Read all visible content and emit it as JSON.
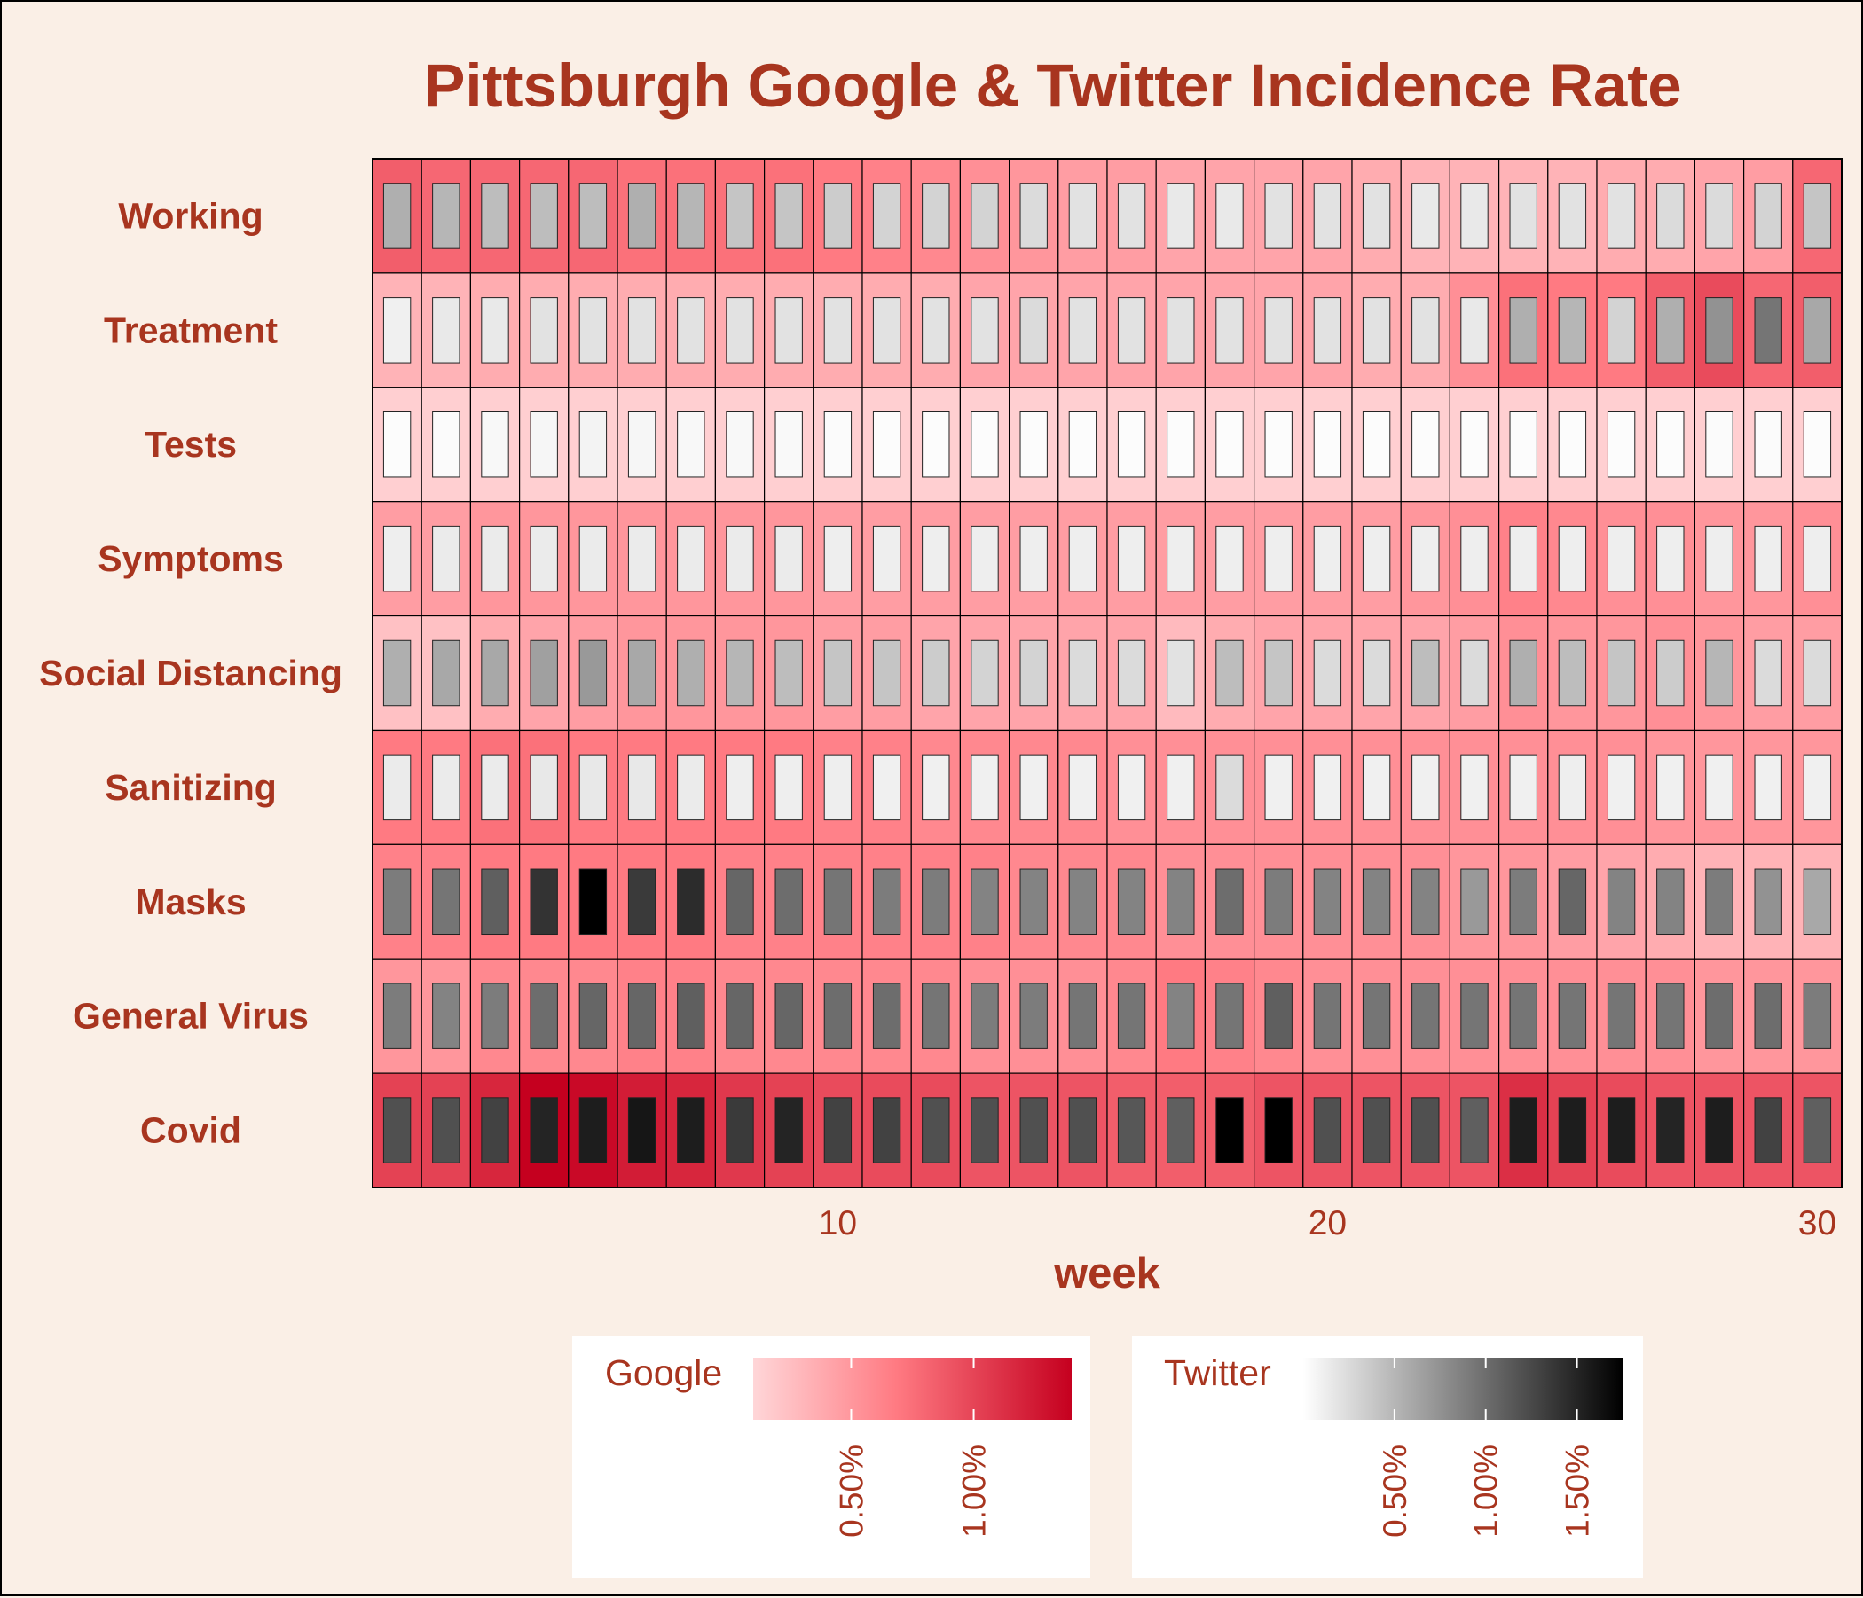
{
  "chart_data": {
    "type": "heatmap",
    "title": "Pittsburgh Google & Twitter Incidence Rate",
    "xlabel": "week",
    "ylabel": "",
    "x_ticks": [
      10,
      20,
      30
    ],
    "xlim": [
      0.5,
      30.5
    ],
    "weeks": [
      1,
      2,
      3,
      4,
      5,
      6,
      7,
      8,
      9,
      10,
      11,
      12,
      13,
      14,
      15,
      16,
      17,
      18,
      19,
      20,
      21,
      22,
      23,
      24,
      25,
      26,
      27,
      28,
      29,
      30
    ],
    "categories": [
      "Working",
      "Treatment",
      "Tests",
      "Symptoms",
      "Social Distancing",
      "Sanitizing",
      "Masks",
      "General Virus",
      "Covid"
    ],
    "google_series": [
      {
        "name": "Working",
        "values": [
          0.9,
          0.85,
          0.85,
          0.85,
          0.85,
          0.8,
          0.8,
          0.8,
          0.8,
          0.75,
          0.7,
          0.65,
          0.6,
          0.55,
          0.5,
          0.5,
          0.45,
          0.45,
          0.45,
          0.45,
          0.4,
          0.35,
          0.35,
          0.35,
          0.35,
          0.4,
          0.4,
          0.45,
          0.5,
          0.85
        ]
      },
      {
        "name": "Treatment",
        "values": [
          0.35,
          0.35,
          0.4,
          0.4,
          0.4,
          0.4,
          0.4,
          0.4,
          0.4,
          0.4,
          0.4,
          0.4,
          0.45,
          0.45,
          0.45,
          0.45,
          0.45,
          0.45,
          0.45,
          0.45,
          0.4,
          0.4,
          0.6,
          0.8,
          0.75,
          0.75,
          0.9,
          1.0,
          0.85,
          0.9
        ]
      },
      {
        "name": "Tests",
        "values": [
          0.15,
          0.15,
          0.15,
          0.15,
          0.15,
          0.15,
          0.15,
          0.15,
          0.15,
          0.15,
          0.15,
          0.15,
          0.15,
          0.15,
          0.15,
          0.15,
          0.15,
          0.15,
          0.15,
          0.15,
          0.15,
          0.15,
          0.15,
          0.15,
          0.15,
          0.15,
          0.15,
          0.15,
          0.15,
          0.15
        ]
      },
      {
        "name": "Symptoms",
        "values": [
          0.5,
          0.5,
          0.55,
          0.55,
          0.55,
          0.55,
          0.55,
          0.55,
          0.55,
          0.5,
          0.5,
          0.5,
          0.5,
          0.5,
          0.5,
          0.5,
          0.5,
          0.5,
          0.5,
          0.5,
          0.5,
          0.55,
          0.6,
          0.7,
          0.65,
          0.6,
          0.6,
          0.55,
          0.55,
          0.6
        ]
      },
      {
        "name": "Social Distancing",
        "values": [
          0.25,
          0.25,
          0.4,
          0.45,
          0.5,
          0.55,
          0.55,
          0.55,
          0.55,
          0.5,
          0.5,
          0.45,
          0.45,
          0.45,
          0.45,
          0.45,
          0.3,
          0.4,
          0.45,
          0.45,
          0.45,
          0.45,
          0.5,
          0.6,
          0.55,
          0.55,
          0.6,
          0.55,
          0.5,
          0.5
        ]
      },
      {
        "name": "Sanitizing",
        "values": [
          0.75,
          0.75,
          0.8,
          0.8,
          0.75,
          0.75,
          0.75,
          0.75,
          0.75,
          0.7,
          0.7,
          0.65,
          0.65,
          0.65,
          0.65,
          0.6,
          0.6,
          0.6,
          0.6,
          0.6,
          0.6,
          0.6,
          0.6,
          0.6,
          0.6,
          0.6,
          0.55,
          0.55,
          0.55,
          0.55
        ]
      },
      {
        "name": "Masks",
        "values": [
          0.7,
          0.7,
          0.75,
          0.75,
          0.75,
          0.75,
          0.75,
          0.7,
          0.7,
          0.7,
          0.7,
          0.7,
          0.7,
          0.65,
          0.65,
          0.65,
          0.6,
          0.6,
          0.6,
          0.6,
          0.6,
          0.6,
          0.55,
          0.55,
          0.5,
          0.45,
          0.4,
          0.35,
          0.35,
          0.35
        ]
      },
      {
        "name": "General Virus",
        "values": [
          0.55,
          0.55,
          0.65,
          0.65,
          0.65,
          0.7,
          0.7,
          0.65,
          0.65,
          0.65,
          0.65,
          0.65,
          0.6,
          0.6,
          0.6,
          0.65,
          0.75,
          0.7,
          0.65,
          0.6,
          0.6,
          0.6,
          0.6,
          0.6,
          0.6,
          0.6,
          0.6,
          0.55,
          0.55,
          0.55
        ]
      },
      {
        "name": "Covid",
        "values": [
          1.05,
          1.05,
          1.2,
          1.4,
          1.35,
          1.25,
          1.2,
          1.1,
          1.05,
          1.0,
          1.0,
          1.0,
          0.95,
          0.95,
          0.95,
          0.9,
          0.9,
          0.9,
          0.95,
          0.95,
          0.95,
          0.95,
          0.95,
          1.15,
          1.05,
          1.0,
          0.95,
          0.95,
          0.95,
          0.95
        ]
      }
    ],
    "twitter_series": [
      {
        "name": "Working",
        "values": [
          0.55,
          0.5,
          0.45,
          0.45,
          0.45,
          0.55,
          0.5,
          0.4,
          0.4,
          0.35,
          0.3,
          0.3,
          0.3,
          0.25,
          0.2,
          0.2,
          0.15,
          0.15,
          0.2,
          0.2,
          0.2,
          0.15,
          0.15,
          0.2,
          0.2,
          0.2,
          0.25,
          0.25,
          0.3,
          0.4
        ]
      },
      {
        "name": "Treatment",
        "values": [
          0.1,
          0.15,
          0.15,
          0.2,
          0.2,
          0.2,
          0.2,
          0.2,
          0.2,
          0.2,
          0.2,
          0.2,
          0.2,
          0.25,
          0.2,
          0.2,
          0.2,
          0.2,
          0.2,
          0.2,
          0.2,
          0.2,
          0.15,
          0.55,
          0.5,
          0.3,
          0.55,
          0.75,
          0.95,
          0.6
        ]
      },
      {
        "name": "Tests",
        "values": [
          0.02,
          0.03,
          0.05,
          0.06,
          0.08,
          0.06,
          0.05,
          0.05,
          0.04,
          0.03,
          0.02,
          0.02,
          0.02,
          0.02,
          0.02,
          0.02,
          0.02,
          0.02,
          0.02,
          0.02,
          0.02,
          0.02,
          0.02,
          0.02,
          0.02,
          0.02,
          0.02,
          0.03,
          0.03,
          0.02
        ]
      },
      {
        "name": "Symptoms",
        "values": [
          0.12,
          0.14,
          0.14,
          0.14,
          0.14,
          0.14,
          0.14,
          0.14,
          0.14,
          0.12,
          0.12,
          0.12,
          0.12,
          0.12,
          0.12,
          0.12,
          0.12,
          0.12,
          0.12,
          0.12,
          0.12,
          0.12,
          0.12,
          0.12,
          0.12,
          0.12,
          0.12,
          0.12,
          0.12,
          0.12
        ]
      },
      {
        "name": "Social Distancing",
        "values": [
          0.55,
          0.6,
          0.6,
          0.65,
          0.7,
          0.6,
          0.55,
          0.5,
          0.45,
          0.4,
          0.4,
          0.35,
          0.3,
          0.3,
          0.25,
          0.25,
          0.2,
          0.45,
          0.4,
          0.25,
          0.25,
          0.45,
          0.25,
          0.55,
          0.45,
          0.4,
          0.35,
          0.5,
          0.25,
          0.25
        ]
      },
      {
        "name": "Sanitizing",
        "values": [
          0.14,
          0.14,
          0.14,
          0.16,
          0.16,
          0.16,
          0.14,
          0.12,
          0.12,
          0.12,
          0.1,
          0.1,
          0.1,
          0.1,
          0.1,
          0.1,
          0.1,
          0.25,
          0.1,
          0.1,
          0.1,
          0.1,
          0.1,
          0.1,
          0.12,
          0.1,
          0.1,
          0.1,
          0.1,
          0.1
        ]
      },
      {
        "name": "Masks",
        "values": [
          0.9,
          0.95,
          1.1,
          1.4,
          1.75,
          1.35,
          1.45,
          1.05,
          1.0,
          0.95,
          0.9,
          0.9,
          0.85,
          0.85,
          0.85,
          0.85,
          0.85,
          1.0,
          0.9,
          0.85,
          0.85,
          0.85,
          0.7,
          0.9,
          1.05,
          0.85,
          0.85,
          0.9,
          0.75,
          0.6
        ]
      },
      {
        "name": "General Virus",
        "values": [
          0.9,
          0.85,
          0.9,
          1.0,
          1.05,
          1.05,
          1.1,
          1.05,
          1.05,
          1.0,
          1.0,
          0.95,
          0.9,
          0.9,
          0.95,
          0.95,
          0.85,
          0.95,
          1.1,
          0.95,
          0.95,
          0.95,
          0.95,
          0.95,
          0.95,
          0.95,
          0.95,
          1.0,
          1.0,
          0.9
        ]
      },
      {
        "name": "Covid",
        "values": [
          1.2,
          1.2,
          1.3,
          1.5,
          1.55,
          1.6,
          1.55,
          1.35,
          1.5,
          1.3,
          1.3,
          1.2,
          1.2,
          1.2,
          1.2,
          1.15,
          1.1,
          1.75,
          1.75,
          1.2,
          1.2,
          1.2,
          1.1,
          1.55,
          1.55,
          1.55,
          1.5,
          1.55,
          1.3,
          1.1
        ]
      }
    ],
    "legend_google": {
      "title": "Google",
      "ticks": [
        "0.50%",
        "1.00%"
      ],
      "tick_values": [
        0.5,
        1.0
      ],
      "range": [
        0.1,
        1.4
      ],
      "colors": [
        "#ffd6d8",
        "#ff7a82",
        "#c5001f"
      ]
    },
    "legend_twitter": {
      "title": "Twitter",
      "ticks": [
        "0.50%",
        "1.00%",
        "1.50%"
      ],
      "tick_values": [
        0.5,
        1.0,
        1.5
      ],
      "range": [
        0.0,
        1.75
      ],
      "colors": [
        "#ffffff",
        "#000000"
      ]
    },
    "legend_placement": "bottom",
    "grid": false
  }
}
